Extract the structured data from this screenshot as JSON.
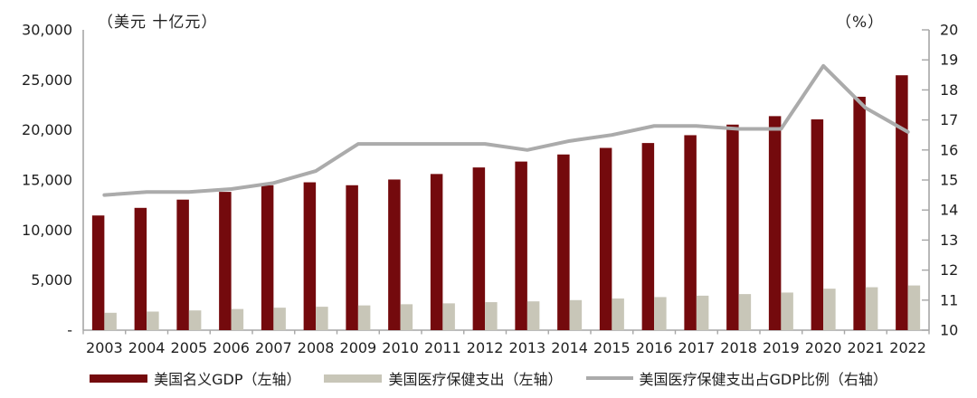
{
  "chart_data": {
    "type": "bar",
    "subtype": "dual-axis bar + line",
    "title": "",
    "categories": [
      "2003",
      "2004",
      "2005",
      "2006",
      "2007",
      "2008",
      "2009",
      "2010",
      "2011",
      "2012",
      "2013",
      "2014",
      "2015",
      "2016",
      "2017",
      "2018",
      "2019",
      "2020",
      "2021",
      "2022"
    ],
    "series": [
      {
        "name": "美国名义GDP（左轴）",
        "type": "bar",
        "axis": "left",
        "color": "#740A0D",
        "values": [
          11456,
          12217,
          13039,
          13816,
          14474,
          14770,
          14478,
          15049,
          15600,
          16254,
          16843,
          17551,
          18206,
          18695,
          19477,
          20533,
          21381,
          21060,
          23315,
          25463
        ]
      },
      {
        "name": "美国医疗保健支出（左轴）",
        "type": "bar",
        "axis": "left",
        "color": "#C8C6B8",
        "values": [
          1735,
          1855,
          1973,
          2113,
          2245,
          2339,
          2472,
          2589,
          2679,
          2797,
          2877,
          3002,
          3165,
          3306,
          3446,
          3604,
          3757,
          4144,
          4289,
          4465
        ]
      },
      {
        "name": "美国医疗保健支出占GDP比例（右轴）",
        "type": "line",
        "axis": "right",
        "color": "#ABABAB",
        "values": [
          14.5,
          14.6,
          14.6,
          14.7,
          14.9,
          15.3,
          16.2,
          16.2,
          16.2,
          16.2,
          16.0,
          16.3,
          16.5,
          16.8,
          16.8,
          16.7,
          16.7,
          18.8,
          17.4,
          16.6
        ]
      }
    ],
    "left_axis": {
      "unit_label": "（美元 十亿元）",
      "min": 0,
      "max": 30000,
      "step": 5000,
      "tick_labels": [
        "30,000",
        "25,000",
        "20,000",
        "15,000",
        "10,000",
        "5,000",
        "-"
      ]
    },
    "right_axis": {
      "unit_label": "（%）",
      "min": 10,
      "max": 20,
      "step": 1,
      "tick_labels": [
        "20",
        "19",
        "18",
        "17",
        "16",
        "15",
        "14",
        "13",
        "12",
        "11",
        "10"
      ]
    },
    "grid": false,
    "legend_position": "bottom",
    "axis_color": "#A6A6A6",
    "text_color": "#1f1f1f"
  }
}
